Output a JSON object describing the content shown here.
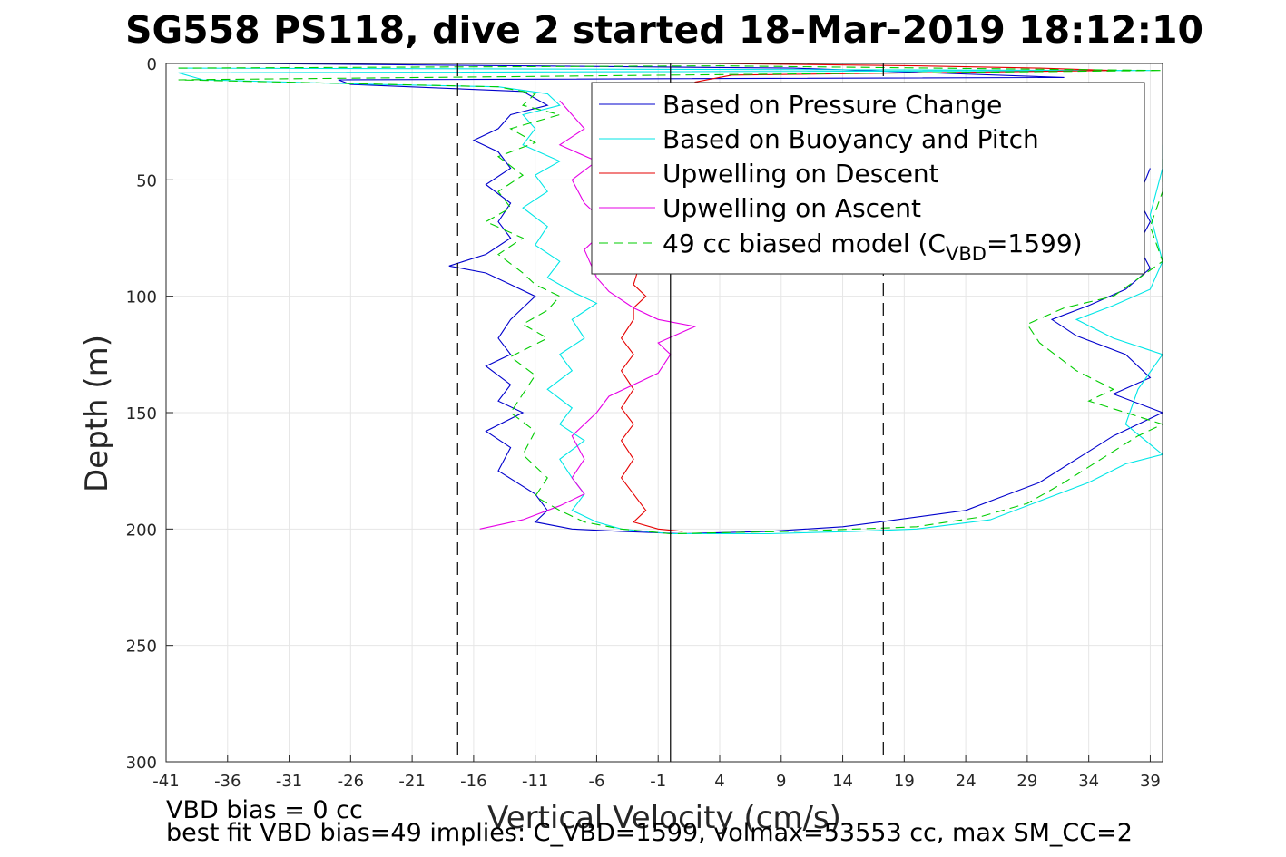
{
  "chart_data": {
    "type": "line",
    "title": "SG558 PS118, dive 2 started 18-Mar-2019 18:12:10",
    "xlabel": "Vertical Velocity (cm/s)",
    "ylabel": "Depth (m)",
    "xlim": [
      -41,
      40
    ],
    "ylim": [
      0,
      300
    ],
    "y_reversed": true,
    "grid": true,
    "xticks": [
      -41,
      -36,
      -31,
      -26,
      -21,
      -16,
      -11,
      -6,
      -1,
      4,
      9,
      14,
      19,
      24,
      29,
      34,
      39
    ],
    "yticks": [
      0,
      50,
      100,
      150,
      200,
      250,
      300
    ],
    "legend_position": "top-right",
    "reference_lines": [
      {
        "x": -17.3,
        "style": "dashed",
        "color": "#000000"
      },
      {
        "x": 0,
        "style": "solid",
        "color": "#000000"
      },
      {
        "x": 17.3,
        "style": "dashed",
        "color": "#000000"
      }
    ],
    "series": [
      {
        "name": "Based on Pressure Change",
        "color": "#0000cc",
        "style": "solid",
        "points": [
          [
            -35,
            0
          ],
          [
            10,
            2
          ],
          [
            32,
            6
          ],
          [
            -27,
            7
          ],
          [
            -26,
            9
          ],
          [
            -12,
            12
          ],
          [
            -11,
            15
          ],
          [
            -10,
            18
          ],
          [
            -13,
            22
          ],
          [
            -14,
            28
          ],
          [
            -16,
            33
          ],
          [
            -14,
            38
          ],
          [
            -13,
            45
          ],
          [
            -15,
            52
          ],
          [
            -13,
            60
          ],
          [
            -14,
            68
          ],
          [
            -13,
            75
          ],
          [
            -15,
            82
          ],
          [
            -18,
            87
          ],
          [
            -15,
            90
          ],
          [
            -13,
            95
          ],
          [
            -11,
            100
          ],
          [
            -12,
            105
          ],
          [
            -13,
            110
          ],
          [
            -14,
            118
          ],
          [
            -13,
            125
          ],
          [
            -15,
            130
          ],
          [
            -13,
            138
          ],
          [
            -14,
            145
          ],
          [
            -12,
            150
          ],
          [
            -15,
            158
          ],
          [
            -13,
            165
          ],
          [
            -14,
            175
          ],
          [
            -11,
            185
          ],
          [
            -10,
            192
          ],
          [
            -11,
            197
          ],
          [
            -8,
            200
          ],
          [
            -4,
            201
          ],
          [
            1,
            202
          ],
          [
            8,
            201
          ],
          [
            14,
            199
          ],
          [
            17,
            197
          ],
          [
            24,
            192
          ],
          [
            27,
            186
          ],
          [
            30,
            180
          ],
          [
            33,
            170
          ],
          [
            36,
            160
          ],
          [
            40,
            150
          ],
          [
            36,
            142
          ],
          [
            39,
            135
          ],
          [
            37,
            125
          ],
          [
            33,
            117
          ],
          [
            31,
            110
          ],
          [
            34,
            104
          ],
          [
            37,
            97
          ],
          [
            39,
            88
          ],
          [
            38,
            78
          ],
          [
            39,
            68
          ],
          [
            38,
            58
          ],
          [
            39,
            45
          ]
        ]
      },
      {
        "name": "Based on Buoyancy and Pitch",
        "color": "#00e6e6",
        "style": "solid",
        "points": [
          [
            -40,
            2
          ],
          [
            39,
            3
          ],
          [
            -40,
            4
          ],
          [
            -38,
            7
          ],
          [
            -24,
            9
          ],
          [
            -14,
            10
          ],
          [
            -10,
            13
          ],
          [
            -9,
            18
          ],
          [
            -12,
            22
          ],
          [
            -11,
            28
          ],
          [
            -12,
            35
          ],
          [
            -9,
            42
          ],
          [
            -11,
            48
          ],
          [
            -10,
            55
          ],
          [
            -12,
            62
          ],
          [
            -10,
            70
          ],
          [
            -11,
            78
          ],
          [
            -9,
            85
          ],
          [
            -10,
            92
          ],
          [
            -8,
            98
          ],
          [
            -6,
            103
          ],
          [
            -8,
            110
          ],
          [
            -7,
            118
          ],
          [
            -9,
            125
          ],
          [
            -8,
            132
          ],
          [
            -10,
            140
          ],
          [
            -8,
            148
          ],
          [
            -9,
            155
          ],
          [
            -7,
            162
          ],
          [
            -9,
            170
          ],
          [
            -8,
            178
          ],
          [
            -7,
            185
          ],
          [
            -8,
            192
          ],
          [
            -6,
            197
          ],
          [
            -4,
            200
          ],
          [
            0,
            202
          ],
          [
            8,
            202
          ],
          [
            15,
            201
          ],
          [
            20,
            200
          ],
          [
            26,
            196
          ],
          [
            30,
            188
          ],
          [
            34,
            180
          ],
          [
            37,
            172
          ],
          [
            40,
            168
          ],
          [
            37,
            155
          ],
          [
            38,
            140
          ],
          [
            40,
            125
          ],
          [
            36,
            118
          ],
          [
            33,
            110
          ],
          [
            36,
            104
          ],
          [
            39,
            97
          ],
          [
            40,
            85
          ],
          [
            39,
            65
          ],
          [
            40,
            45
          ],
          [
            40,
            35
          ]
        ]
      },
      {
        "name": "Upwelling on Descent",
        "color": "#e60000",
        "style": "solid",
        "points": [
          [
            -1,
            0
          ],
          [
            3,
            0
          ],
          [
            20,
            1
          ],
          [
            30,
            2
          ],
          [
            36,
            3
          ],
          [
            5,
            5
          ],
          [
            2,
            8
          ],
          [
            -3,
            95
          ],
          [
            -2,
            100
          ],
          [
            -3,
            105
          ],
          [
            -3,
            110
          ],
          [
            -4,
            118
          ],
          [
            -3,
            125
          ],
          [
            -4,
            132
          ],
          [
            -3,
            140
          ],
          [
            -4,
            148
          ],
          [
            -3,
            155
          ],
          [
            -4,
            162
          ],
          [
            -3,
            170
          ],
          [
            -4,
            178
          ],
          [
            -3,
            185
          ],
          [
            -2,
            192
          ],
          [
            -3,
            197
          ],
          [
            -1,
            200
          ],
          [
            1,
            201
          ]
        ]
      },
      {
        "name": "Upwelling on Ascent",
        "color": "#e600e6",
        "style": "solid",
        "points": [
          [
            -15.5,
            200
          ],
          [
            -12,
            196
          ],
          [
            -9,
            190
          ],
          [
            -7,
            185
          ],
          [
            -8,
            178
          ],
          [
            -7,
            170
          ],
          [
            -8,
            160
          ],
          [
            -6,
            150
          ],
          [
            -5,
            143
          ],
          [
            -3,
            138
          ],
          [
            -1,
            133
          ],
          [
            0,
            125
          ],
          [
            -1,
            120
          ],
          [
            2,
            113
          ],
          [
            -1,
            110
          ],
          [
            -3,
            105
          ],
          [
            -5,
            98
          ],
          [
            -6,
            92
          ],
          [
            -7,
            80
          ],
          [
            -5,
            70
          ],
          [
            -7,
            60
          ],
          [
            -8,
            50
          ],
          [
            -6,
            42
          ],
          [
            -9,
            35
          ],
          [
            -7,
            28
          ],
          [
            -8,
            22
          ],
          [
            -9,
            16
          ]
        ]
      },
      {
        "name": "49 cc biased model (C_VBD=1599)",
        "color": "#00cc00",
        "style": "dashed",
        "points": [
          [
            -40,
            2
          ],
          [
            4,
            1
          ],
          [
            40,
            3
          ],
          [
            -40,
            7
          ],
          [
            -14,
            10
          ],
          [
            -11,
            13
          ],
          [
            -12,
            18
          ],
          [
            -9,
            22
          ],
          [
            -13,
            28
          ],
          [
            -11,
            34
          ],
          [
            -14,
            40
          ],
          [
            -12,
            48
          ],
          [
            -14,
            55
          ],
          [
            -13,
            62
          ],
          [
            -15,
            68
          ],
          [
            -12,
            75
          ],
          [
            -14,
            82
          ],
          [
            -12,
            90
          ],
          [
            -11,
            95
          ],
          [
            -9,
            100
          ],
          [
            -10,
            106
          ],
          [
            -12,
            112
          ],
          [
            -10,
            118
          ],
          [
            -13,
            126
          ],
          [
            -11,
            134
          ],
          [
            -12,
            142
          ],
          [
            -13,
            150
          ],
          [
            -11,
            158
          ],
          [
            -12,
            168
          ],
          [
            -10,
            178
          ],
          [
            -11,
            186
          ],
          [
            -9,
            192
          ],
          [
            -7,
            197
          ],
          [
            -4,
            200
          ],
          [
            0,
            202
          ],
          [
            10,
            201
          ],
          [
            20,
            199
          ],
          [
            25,
            195
          ],
          [
            29,
            189
          ],
          [
            32,
            180
          ],
          [
            35,
            170
          ],
          [
            38,
            160
          ],
          [
            40,
            155
          ],
          [
            34,
            145
          ],
          [
            36,
            140
          ],
          [
            33,
            132
          ],
          [
            30,
            120
          ],
          [
            29,
            112
          ],
          [
            32,
            105
          ],
          [
            36,
            100
          ],
          [
            40,
            85
          ],
          [
            39,
            70
          ],
          [
            40,
            55
          ],
          [
            40,
            40
          ]
        ]
      }
    ],
    "legend": [
      {
        "label": "Based on Pressure Change",
        "color": "#0000cc",
        "style": "solid"
      },
      {
        "label": "Based on Buoyancy and Pitch",
        "color": "#00e6e6",
        "style": "solid"
      },
      {
        "label": "Upwelling on Descent",
        "color": "#e60000",
        "style": "solid"
      },
      {
        "label": "Upwelling on Ascent",
        "color": "#e600e6",
        "style": "solid"
      },
      {
        "label": "49 cc biased model (C",
        "sub": "VBD",
        "tail": "=1599)",
        "color": "#00cc00",
        "style": "dashed"
      }
    ]
  },
  "annotations": {
    "line1": "VBD bias = 0 cc",
    "line2": "best fit VBD bias=49 implies: C_VBD=1599, volmax=53553 cc, max SM_CC=2"
  }
}
